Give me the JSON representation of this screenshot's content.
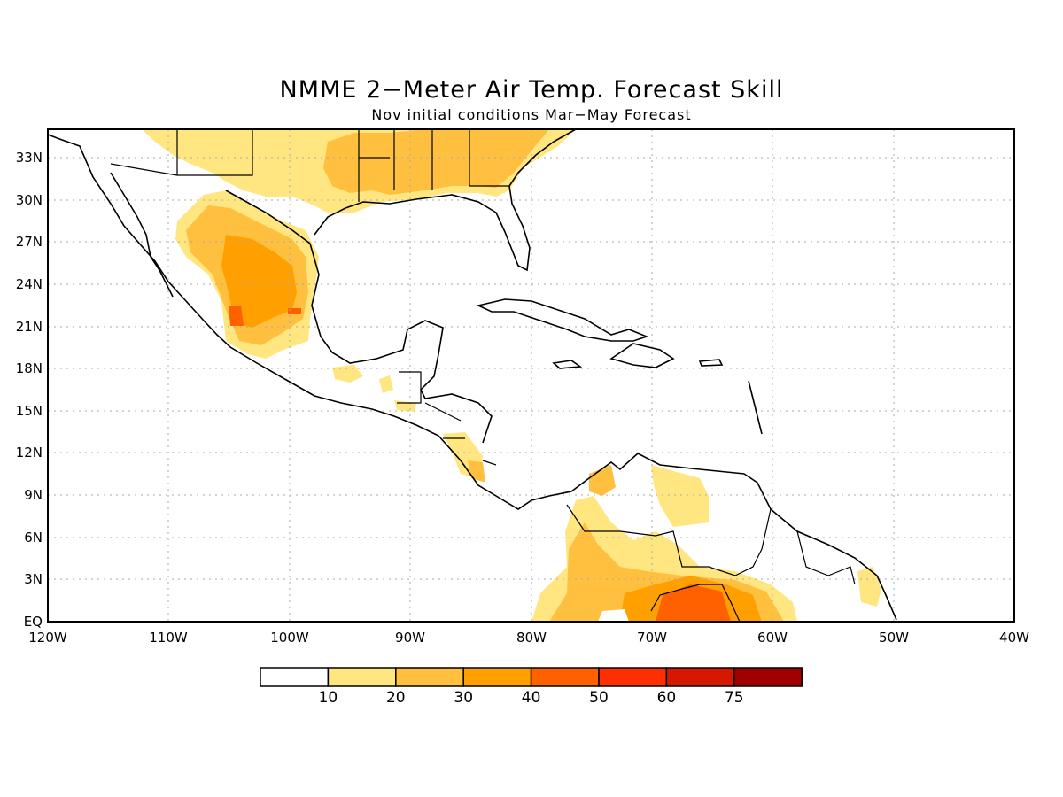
{
  "title": "NMME 2−Meter Air Temp. Forecast Skill",
  "subtitle": "Nov initial conditions  Mar−May Forecast",
  "lat_labels": [
    "33N",
    "30N",
    "27N",
    "24N",
    "21N",
    "18N",
    "15N",
    "12N",
    "9N",
    "6N",
    "3N",
    "EQ"
  ],
  "lon_labels": [
    "120W",
    "110W",
    "100W",
    "90W",
    "80W",
    "70W",
    "60W",
    "50W",
    "40W"
  ],
  "colorbar": {
    "colors": [
      "#ffffff",
      "#ffe680",
      "#ffbf3f",
      "#ffa000",
      "#ff6000",
      "#ff2f00",
      "#d71800",
      "#a00000"
    ],
    "labels": [
      "10",
      "20",
      "30",
      "40",
      "50",
      "60",
      "75"
    ]
  }
}
